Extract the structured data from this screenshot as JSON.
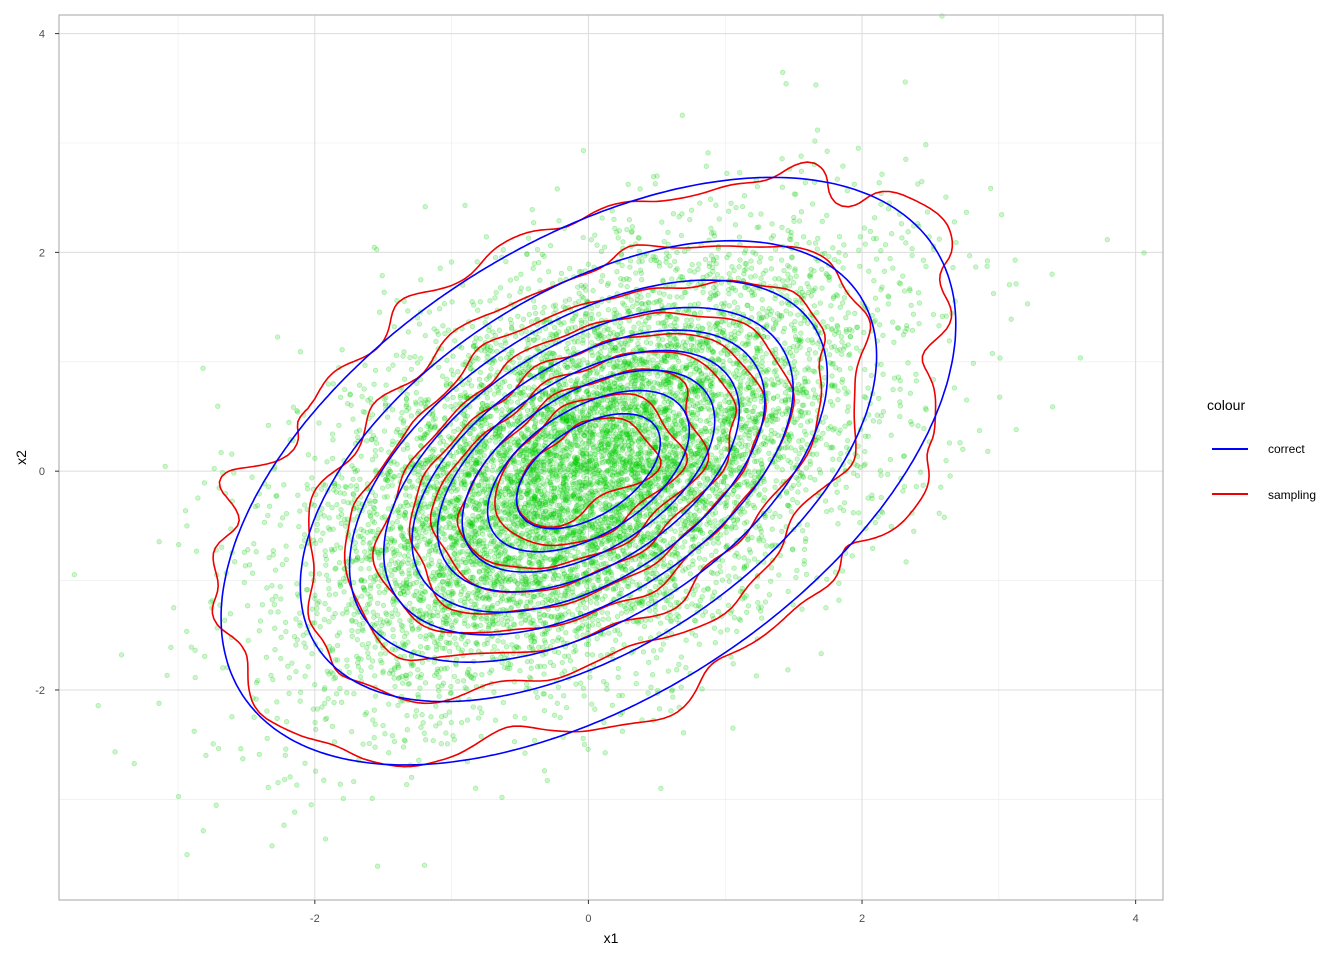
{
  "chart_data": {
    "type": "scatter",
    "title": "",
    "xlabel": "x1",
    "ylabel": "x2",
    "xlim": [
      -3.87,
      4.2
    ],
    "ylim": [
      -3.92,
      4.17
    ],
    "xticks": [
      -2,
      0,
      2,
      4
    ],
    "yticks": [
      -2,
      0,
      2,
      4
    ],
    "grid": true,
    "point_color": "#00cc00",
    "point_alpha": 0.2,
    "scatter_params": {
      "n": 9000,
      "mean": [
        0,
        0
      ],
      "sd": [
        1,
        1
      ],
      "rho": 0.5
    },
    "contour_levels": [
      0.005,
      0.02,
      0.04,
      0.06,
      0.08,
      0.1,
      0.12,
      0.14,
      0.16
    ],
    "legend": {
      "title": "colour",
      "position": "right",
      "entries": [
        {
          "label": "correct",
          "color": "#0000ff"
        },
        {
          "label": "sampling",
          "color": "#ee0000"
        }
      ]
    },
    "series": [
      {
        "name": "correct",
        "kind": "density_contour",
        "color": "#0000ff"
      },
      {
        "name": "sampling",
        "kind": "density_contour",
        "color": "#ee0000"
      }
    ]
  }
}
